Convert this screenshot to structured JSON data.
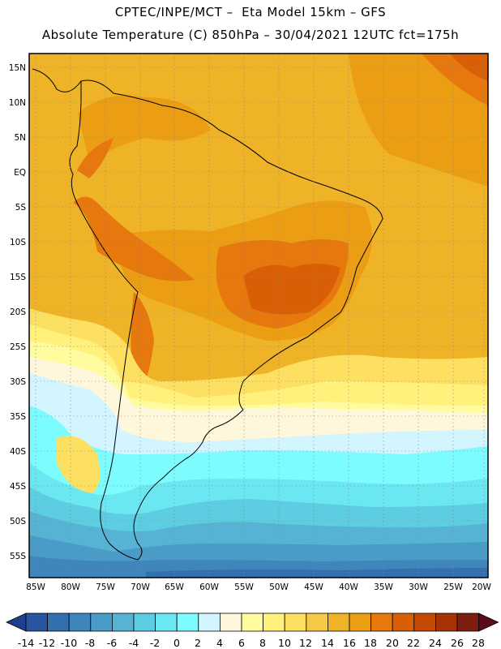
{
  "header": {
    "line1": "CPTEC/INPE/MCT –  Eta Model 15km – GFS",
    "line2": "Absolute Temperature (C) 850hPa – 30/04/2021 12UTC fct=175h"
  },
  "axes": {
    "lat_labels": [
      "15N",
      "10N",
      "5N",
      "EQ",
      "5S",
      "10S",
      "15S",
      "20S",
      "25S",
      "30S",
      "35S",
      "40S",
      "45S",
      "50S",
      "55S"
    ],
    "lon_labels": [
      "85W",
      "80W",
      "75W",
      "70W",
      "65W",
      "60W",
      "55W",
      "50W",
      "45W",
      "40W",
      "35W",
      "30W",
      "25W",
      "20W"
    ]
  },
  "colorbar": {
    "ticks": [
      "-14",
      "-12",
      "-10",
      "-8",
      "-6",
      "-4",
      "-2",
      "0",
      "2",
      "4",
      "6",
      "8",
      "10",
      "12",
      "14",
      "16",
      "18",
      "20",
      "22",
      "24",
      "26",
      "28"
    ],
    "colors": [
      "#1f3f8f",
      "#28559f",
      "#3470ae",
      "#3e86bb",
      "#4a9cc8",
      "#56b3d4",
      "#5dcde2",
      "#6ae7f0",
      "#7cfcff",
      "#d3f5ff",
      "#fff7dc",
      "#fffca0",
      "#fff17c",
      "#fde062",
      "#f6c846",
      "#efb328",
      "#eb9d14",
      "#e6780d",
      "#d95f06",
      "#c44a03",
      "#a63205",
      "#7e1e11",
      "#5a0c1c"
    ]
  }
}
